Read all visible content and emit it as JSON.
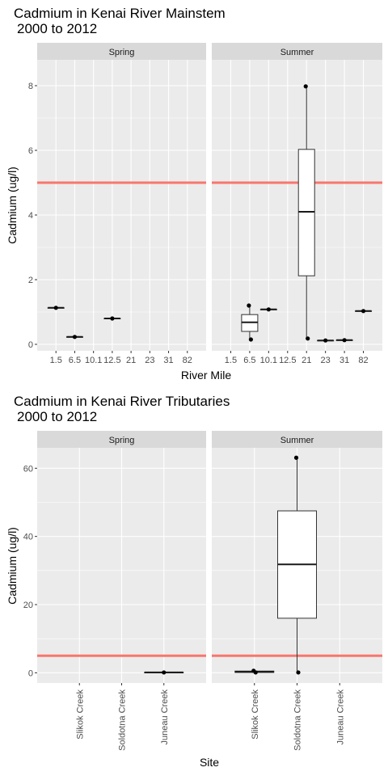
{
  "chart_data": [
    {
      "type": "boxplot",
      "title": "Cadmium in Kenai River Mainstem",
      "subtitle": "2000 to 2012",
      "xlabel": "River Mile",
      "ylabel": "Cadmium (ug/l)",
      "ylim": [
        -0.2,
        8.8
      ],
      "yticks": [
        0,
        2,
        4,
        6,
        8
      ],
      "threshold": 5,
      "threshold_color": "#f8766d",
      "categories": [
        "1.5",
        "6.5",
        "10.1",
        "12.5",
        "21",
        "23",
        "31",
        "82"
      ],
      "facets": [
        {
          "label": "Spring",
          "boxes": [
            {
              "x": "1.5",
              "min": 1.13,
              "q1": 1.13,
              "median": 1.13,
              "q3": 1.13,
              "max": 1.13,
              "points": [
                1.13
              ]
            },
            {
              "x": "6.5",
              "min": 0.23,
              "q1": 0.23,
              "median": 0.23,
              "q3": 0.23,
              "max": 0.23,
              "points": [
                0.23
              ]
            },
            {
              "x": "12.5",
              "min": 0.8,
              "q1": 0.8,
              "median": 0.8,
              "q3": 0.8,
              "max": 0.8,
              "points": [
                0.8
              ]
            }
          ]
        },
        {
          "label": "Summer",
          "boxes": [
            {
              "x": "6.5",
              "min": 0.15,
              "q1": 0.4,
              "median": 0.68,
              "q3": 0.92,
              "max": 1.2,
              "points": [
                1.2,
                0.15
              ]
            },
            {
              "x": "10.1",
              "min": 1.08,
              "q1": 1.08,
              "median": 1.08,
              "q3": 1.08,
              "max": 1.08,
              "points": [
                1.08
              ]
            },
            {
              "x": "21",
              "min": 0.18,
              "q1": 2.12,
              "median": 4.1,
              "q3": 6.03,
              "max": 7.98,
              "points": [
                7.98,
                0.18
              ]
            },
            {
              "x": "23",
              "min": 0.12,
              "q1": 0.12,
              "median": 0.12,
              "q3": 0.12,
              "max": 0.12,
              "points": [
                0.12
              ]
            },
            {
              "x": "31",
              "min": 0.13,
              "q1": 0.13,
              "median": 0.13,
              "q3": 0.13,
              "max": 0.13,
              "points": [
                0.13
              ]
            },
            {
              "x": "82",
              "min": 1.03,
              "q1": 1.03,
              "median": 1.03,
              "q3": 1.03,
              "max": 1.03,
              "points": [
                1.03
              ]
            }
          ]
        }
      ]
    },
    {
      "type": "boxplot",
      "title": "Cadmium in Kenai River Tributaries",
      "subtitle": "2000 to 2012",
      "xlabel": "Site",
      "ylabel": "Cadmium (ug/l)",
      "ylim": [
        -3,
        66
      ],
      "yticks": [
        0,
        20,
        40,
        60
      ],
      "threshold": 5,
      "threshold_color": "#f8766d",
      "categories": [
        "Slikok Creek",
        "Soldotna Creek",
        "Juneau Creek"
      ],
      "facets": [
        {
          "label": "Spring",
          "boxes": [
            {
              "x": "Juneau Creek",
              "min": 0.1,
              "q1": 0.1,
              "median": 0.1,
              "q3": 0.1,
              "max": 0.1,
              "points": [
                0.1
              ]
            }
          ]
        },
        {
          "label": "Summer",
          "boxes": [
            {
              "x": "Slikok Creek",
              "min": 0.1,
              "q1": 0.1,
              "median": 0.3,
              "q3": 0.5,
              "max": 0.6,
              "points": [
                0.6,
                0.1
              ]
            },
            {
              "x": "Soldotna Creek",
              "min": 0.1,
              "q1": 16,
              "median": 31.8,
              "q3": 47.5,
              "max": 63.1,
              "points": [
                63.1,
                0.1
              ]
            }
          ]
        }
      ]
    }
  ]
}
